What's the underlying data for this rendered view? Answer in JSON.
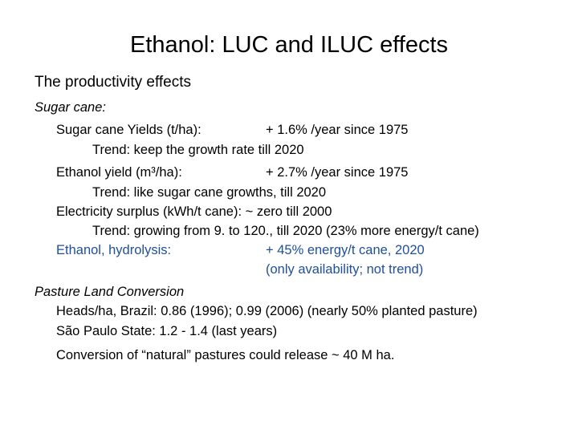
{
  "slide": {
    "title": "Ethanol: LUC and ILUC effects",
    "subtitle": "The productivity effects",
    "sugar_cane": {
      "heading": "Sugar cane:",
      "yields_label": "Sugar cane Yields (t/ha):",
      "yields_value": "+ 1.6%  /year since 1975",
      "yields_trend": "Trend: keep the growth rate till 2020",
      "ethanol_label": "Ethanol yield (m³/ha):",
      "ethanol_value": "+ 2.7%  /year since 1975",
      "ethanol_trend": "Trend: like sugar cane growths, till 2020",
      "electricity_line": "Electricity surplus (kWh/t cane): ~ zero till 2000",
      "electricity_trend": "Trend: growing from 9. to 120., till 2020  (23% more energy/t cane)",
      "hydrolysis_label": "Ethanol, hydrolysis:",
      "hydrolysis_value": "+ 45% energy/t cane, 2020",
      "hydrolysis_note": "(only  availability; not trend)"
    },
    "pasture": {
      "heading": "Pasture Land Conversion",
      "heads_line": "Heads/ha, Brazil:  0.86 (1996); 0.99 (2006) (nearly 50% planted  pasture)",
      "sao_paulo_line": "São Paulo State: 1.2  -  1.4 (last years)",
      "conversion_line": "Conversion of  “natural” pastures could release ~ 40 M ha."
    },
    "colors": {
      "highlight_blue": "#1f4e9a"
    }
  }
}
